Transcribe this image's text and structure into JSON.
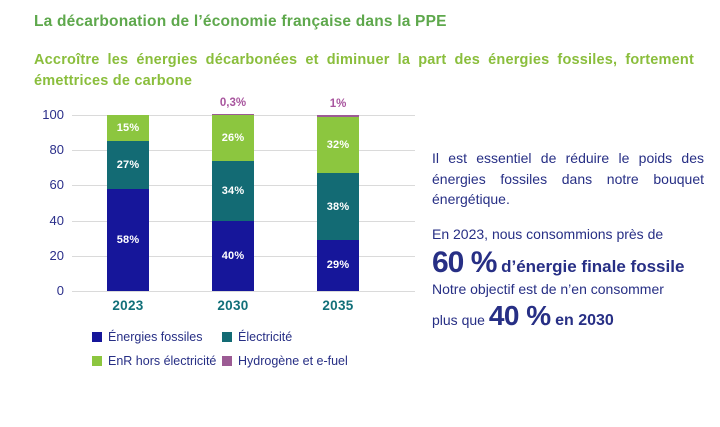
{
  "page": {
    "title": "La décarbonation de l’économie française dans la PPE",
    "subtitle_lines": [
      "Accroître les énergies décarbonées et diminuer la part des énergies fossiles, fortement",
      "émettrices de carbone"
    ]
  },
  "colors": {
    "title_green": "#5ea84c",
    "subtitle_green": "#8abe3c",
    "fossil_navy": "#16169a",
    "electricity_teal": "#136b74",
    "enr_lime": "#8cc63f",
    "hydrogen_purple": "#9c5b94",
    "text_navy": "#272f85",
    "axis_tick_navy": "#2b2f8a",
    "year_teal": "#127079",
    "above_label_purple": "#a8559e",
    "gridline_gray": "#dadada"
  },
  "chart_data": {
    "type": "bar",
    "stacked": true,
    "title": "",
    "xlabel": "",
    "ylabel": "",
    "categories": [
      "2023",
      "2030",
      "2035"
    ],
    "series": [
      {
        "name": "Énergies fossiles",
        "color": "#16169a",
        "values": [
          58,
          40,
          29
        ]
      },
      {
        "name": "Électricité",
        "color": "#136b74",
        "values": [
          27,
          34,
          38
        ]
      },
      {
        "name": "EnR hors électricité",
        "color": "#8cc63f",
        "values": [
          15,
          26,
          32
        ]
      },
      {
        "name": "Hydrogène et e-fuel",
        "color": "#9c5b94",
        "values": [
          0,
          0.3,
          1
        ]
      }
    ],
    "segment_labels": [
      [
        "58%",
        "40%",
        "29%"
      ],
      [
        "27%",
        "34%",
        "38%"
      ],
      [
        "15%",
        "26%",
        "32%"
      ],
      [
        "",
        "",
        ""
      ]
    ],
    "above_bar_labels": [
      "",
      "0,3%",
      "1%"
    ],
    "yticks": [
      "0",
      "20",
      "40",
      "60",
      "80",
      "100"
    ],
    "ylim": [
      0,
      100
    ],
    "grid": true,
    "legend_position": "bottom-left"
  },
  "aside": {
    "paragraph1": "Il est essentiel de réduire le poids des énergies fossiles dans notre bouquet énergétique.",
    "consumption_prefix": "En 2023, nous consommions près de",
    "consumption_value": "60 %",
    "consumption_suffix": " d’énergie finale fossile",
    "objective_line": "Notre objectif est de n’en consommer",
    "objective_prefix": "plus que ",
    "objective_value": "40 %",
    "objective_suffix": " en 2030"
  }
}
